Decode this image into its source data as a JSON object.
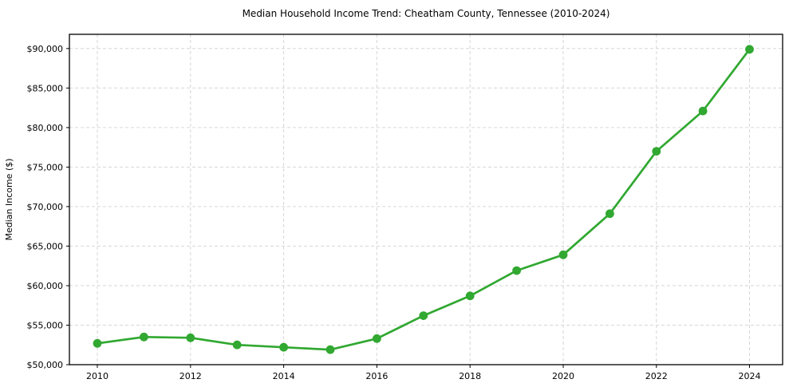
{
  "chart_data": {
    "type": "line",
    "title": "Median Household Income Trend: Cheatham County, Tennessee (2010-2024)",
    "xlabel": "",
    "ylabel": "Median Income ($)",
    "x": [
      2010,
      2011,
      2012,
      2013,
      2014,
      2015,
      2016,
      2017,
      2018,
      2019,
      2020,
      2021,
      2022,
      2023,
      2024
    ],
    "values": [
      52700,
      53500,
      53400,
      52500,
      52200,
      51900,
      53300,
      56200,
      58700,
      61900,
      63900,
      69100,
      77000,
      82100,
      89900
    ],
    "x_ticks": [
      2010,
      2012,
      2014,
      2016,
      2018,
      2020,
      2022,
      2024
    ],
    "x_tick_labels": [
      "2010",
      "2012",
      "2014",
      "2016",
      "2018",
      "2020",
      "2022",
      "2024"
    ],
    "y_ticks": [
      50000,
      55000,
      60000,
      65000,
      70000,
      75000,
      80000,
      85000,
      90000
    ],
    "y_tick_labels": [
      "$50,000",
      "$55,000",
      "$60,000",
      "$65,000",
      "$70,000",
      "$75,000",
      "$80,000",
      "$85,000",
      "$90,000"
    ],
    "xlim": [
      2009.4,
      2024.71
    ],
    "ylim": [
      50000,
      91800
    ],
    "grid": true,
    "grid_style": "dashed",
    "grid_color": "#d6d6d6",
    "legend_position": "none",
    "line_color": "#31a831",
    "marker": "circle",
    "marker_color": "#31a831"
  }
}
